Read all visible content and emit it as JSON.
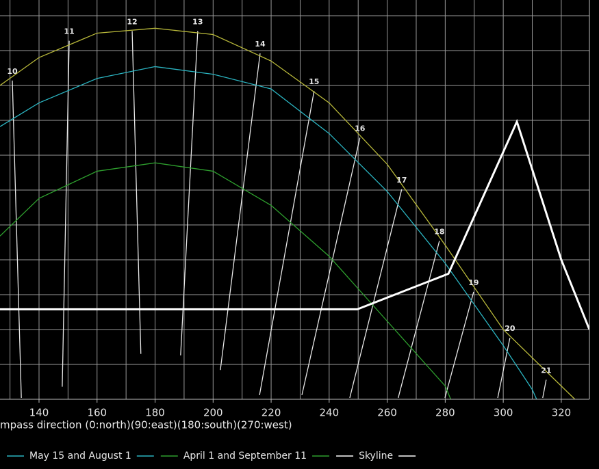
{
  "chart_data": {
    "type": "line",
    "x_label": "mpass direction (0:north)(90:east)(180:south)(270:west)",
    "xlim": [
      126.55,
      329.7
    ],
    "ylim": [
      0,
      57.25
    ],
    "xticks": [
      140,
      160,
      180,
      200,
      220,
      240,
      260,
      280,
      300,
      320
    ],
    "xgrid": [
      130,
      140,
      150,
      160,
      170,
      180,
      190,
      200,
      210,
      220,
      230,
      240,
      250,
      260,
      270,
      280,
      290,
      300,
      310,
      320,
      330
    ],
    "ygrid": [
      5,
      10,
      15,
      20,
      25,
      30,
      35,
      40,
      45,
      50,
      55
    ],
    "grid": true,
    "series": [
      {
        "color": "#b8b83a",
        "x": [
          126.55,
          140,
          160,
          180,
          200,
          220,
          240,
          260,
          280,
          300,
          320,
          324.7
        ],
        "values": [
          45,
          49,
          52.5,
          53.2,
          52.3,
          48.5,
          42.5,
          33.7,
          22.1,
          10,
          1.9,
          0
        ]
      },
      {
        "name": "May 15 and August 1",
        "color": "#2bb5c2",
        "x": [
          126.55,
          140,
          160,
          180,
          200,
          220,
          240,
          260,
          280,
          300,
          310,
          311.5
        ],
        "values": [
          39.1,
          42.5,
          46,
          47.7,
          46.6,
          44.5,
          38.1,
          29.8,
          19.5,
          7.7,
          1.4,
          0
        ]
      },
      {
        "name": "April 1 and September 11",
        "color": "#2ea02e",
        "x": [
          126.55,
          140,
          160,
          180,
          200,
          220,
          240,
          260,
          280,
          281.9
        ],
        "values": [
          23.4,
          28.8,
          32.7,
          33.9,
          32.7,
          27.8,
          20.5,
          11.2,
          1.9,
          0
        ]
      },
      {
        "name": "Skyline",
        "color": "#ffffff",
        "x": [
          126.55,
          249.7,
          281.1,
          304.7,
          320,
          329.7
        ],
        "values": [
          12.9,
          12.9,
          18,
          39.8,
          20,
          10
        ]
      }
    ],
    "hour_color": "#e8e8e8",
    "hour_lines": [
      {
        "label": "10",
        "x": [
          130.8,
          133.9
        ],
        "values": [
          45.7,
          0.2
        ]
      },
      {
        "label": "11",
        "x": [
          150.4,
          148.0
        ],
        "values": [
          51.4,
          1.8
        ]
      },
      {
        "label": "12",
        "x": [
          172.1,
          175.1
        ],
        "values": [
          52.8,
          6.5
        ]
      },
      {
        "label": "13",
        "x": [
          194.7,
          188.8
        ],
        "values": [
          52.8,
          6.3
        ]
      },
      {
        "label": "14",
        "x": [
          216.2,
          202.5
        ],
        "values": [
          49.6,
          4.2
        ]
      },
      {
        "label": "15",
        "x": [
          234.8,
          216.0
        ],
        "values": [
          44.2,
          0.6
        ]
      },
      {
        "label": "16",
        "x": [
          250.6,
          230.6
        ],
        "values": [
          37.5,
          0.6
        ]
      },
      {
        "label": "17",
        "x": [
          265.0,
          247.1
        ],
        "values": [
          30.1,
          0.2
        ]
      },
      {
        "label": "18",
        "x": [
          278.0,
          263.8
        ],
        "values": [
          22.7,
          0.2
        ]
      },
      {
        "label": "19",
        "x": [
          289.8,
          279.9
        ],
        "values": [
          15.4,
          0.2
        ]
      },
      {
        "label": "20",
        "x": [
          302.3,
          298.1
        ],
        "values": [
          8.8,
          0.2
        ]
      },
      {
        "label": "21",
        "x": [
          314.8,
          313.6
        ],
        "values": [
          2.8,
          0.2
        ]
      }
    ]
  }
}
